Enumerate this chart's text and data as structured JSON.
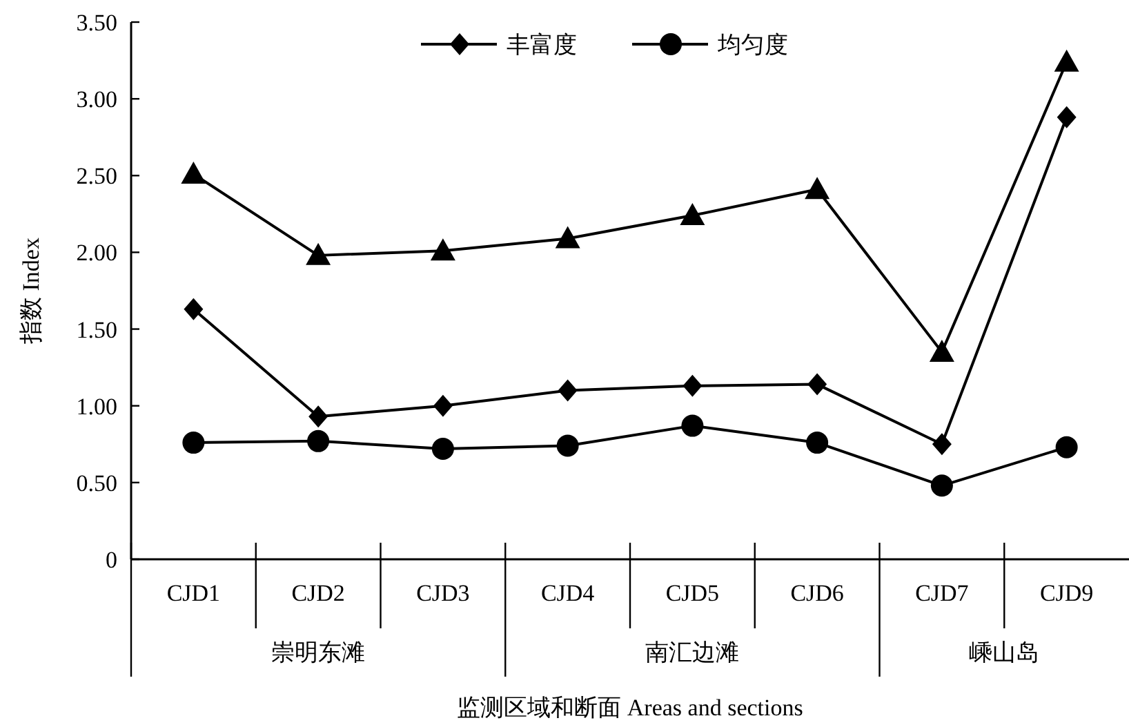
{
  "chart_data": {
    "type": "line",
    "xlabel": "监测区域和断面 Areas and sections",
    "ylabel": "指数 Index",
    "categories": [
      "CJD1",
      "CJD2",
      "CJD3",
      "CJD4",
      "CJD5",
      "CJD6",
      "CJD7",
      "CJD9"
    ],
    "series": [
      {
        "color": "#000000",
        "marker": "triangle",
        "values": [
          2.51,
          1.98,
          2.01,
          2.09,
          2.24,
          2.41,
          1.35,
          3.24
        ]
      },
      {
        "name": "丰富度",
        "color": "#000000",
        "marker": "diamond",
        "values": [
          1.63,
          0.93,
          1.0,
          1.1,
          1.13,
          1.14,
          0.75,
          2.88
        ]
      },
      {
        "name": "均匀度",
        "color": "#000000",
        "marker": "circle",
        "values": [
          0.76,
          0.77,
          0.72,
          0.74,
          0.87,
          0.76,
          0.48,
          0.73
        ]
      }
    ],
    "ylim": [
      0,
      3.5
    ],
    "yticks": [
      0,
      {
        "value": 0.5,
        "label": "0.50"
      },
      {
        "value": 1,
        "label": "1.00"
      },
      {
        "value": 1.5,
        "label": "1.50"
      },
      {
        "value": 2,
        "label": "2.00"
      },
      {
        "value": 2.5,
        "label": "2.50"
      },
      {
        "value": 3,
        "label": "3.00"
      },
      {
        "value": 3.5,
        "label": "3.50"
      }
    ],
    "annotations": [
      "崇明东滩",
      "南汇边滩",
      "嵊山岛"
    ],
    "legend": "top",
    "grid": false,
    "line_style": "solid"
  }
}
